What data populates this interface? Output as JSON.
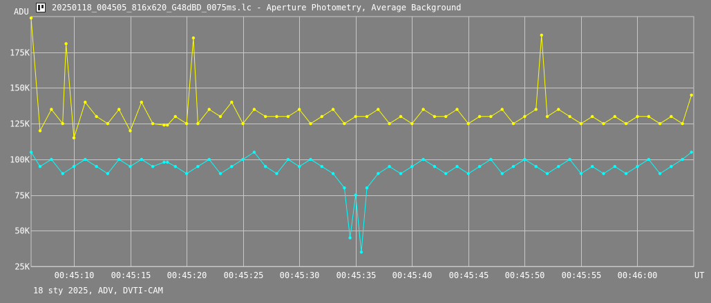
{
  "window": {
    "title": "20250118_004505_816x620_G48dBD_0075ms.lc - Aperture Photometry, Average Background",
    "footer": "18 sty 2025, ADV, DVTI-CAM"
  },
  "chart_data": {
    "type": "line",
    "ylabel": "ADU",
    "xlabel": "UT",
    "ylim": [
      25000,
      200000
    ],
    "xlim": [
      6.2,
      65.0
    ],
    "y_ticks": [
      25000,
      50000,
      75000,
      100000,
      125000,
      150000,
      175000
    ],
    "y_tick_labels": [
      "25K",
      "50K",
      "75K",
      "100K",
      "125K",
      "150K",
      "175K"
    ],
    "x_ticks": [
      10,
      15,
      20,
      25,
      30,
      35,
      40,
      45,
      50,
      55,
      60
    ],
    "x_tick_labels": [
      "00:45:10",
      "00:45:15",
      "00:45:20",
      "00:45:25",
      "00:45:30",
      "00:45:35",
      "00:45:40",
      "00:45:45",
      "00:45:50",
      "00:45:55",
      "00:46:00"
    ],
    "grid": true,
    "series": [
      {
        "color": "#ffff00",
        "x": [
          6.2,
          7.0,
          8.0,
          9.0,
          9.3,
          10.0,
          11.0,
          12.0,
          13.0,
          14.0,
          15.0,
          16.0,
          17.0,
          18.0,
          18.3,
          19.0,
          20.0,
          20.6,
          21.0,
          22.0,
          23.0,
          24.0,
          25.0,
          26.0,
          27.0,
          28.0,
          29.0,
          30.0,
          31.0,
          32.0,
          33.0,
          34.0,
          35.0,
          36.0,
          37.0,
          38.0,
          39.0,
          40.0,
          41.0,
          42.0,
          43.0,
          44.0,
          45.0,
          46.0,
          47.0,
          48.0,
          49.0,
          50.0,
          51.0,
          51.5,
          52.0,
          53.0,
          54.0,
          55.0,
          56.0,
          57.0,
          58.0,
          59.0,
          60.0,
          61.0,
          62.0,
          63.0,
          64.0,
          64.8
        ],
        "y": [
          199000,
          120000,
          135000,
          125000,
          181000,
          115000,
          140000,
          130000,
          125000,
          135000,
          120000,
          140000,
          125000,
          124000,
          124000,
          130000,
          125000,
          185000,
          125000,
          135000,
          130000,
          140000,
          125000,
          135000,
          130000,
          130000,
          130000,
          135000,
          125000,
          130000,
          135000,
          125000,
          130000,
          130000,
          135000,
          125000,
          130000,
          125000,
          135000,
          130000,
          130000,
          135000,
          125000,
          130000,
          130000,
          135000,
          125000,
          130000,
          135000,
          187000,
          130000,
          135000,
          130000,
          125000,
          130000,
          125000,
          130000,
          125000,
          130000,
          130000,
          125000,
          130000,
          125000,
          145000
        ]
      },
      {
        "color": "#00ffff",
        "x": [
          6.2,
          7.0,
          8.0,
          9.0,
          10.0,
          11.0,
          12.0,
          13.0,
          14.0,
          15.0,
          16.0,
          17.0,
          18.0,
          18.3,
          19.0,
          20.0,
          21.0,
          22.0,
          23.0,
          24.0,
          25.0,
          26.0,
          27.0,
          28.0,
          29.0,
          30.0,
          31.0,
          32.0,
          33.0,
          34.0,
          34.5,
          35.0,
          35.5,
          36.0,
          37.0,
          38.0,
          39.0,
          40.0,
          41.0,
          42.0,
          43.0,
          44.0,
          45.0,
          46.0,
          47.0,
          48.0,
          49.0,
          50.0,
          51.0,
          52.0,
          53.0,
          54.0,
          55.0,
          56.0,
          57.0,
          58.0,
          59.0,
          60.0,
          61.0,
          62.0,
          63.0,
          64.0,
          64.8
        ],
        "y": [
          105000,
          95000,
          100000,
          90000,
          95000,
          100000,
          95000,
          90000,
          100000,
          95000,
          100000,
          95000,
          98000,
          98000,
          95000,
          90000,
          95000,
          100000,
          90000,
          95000,
          100000,
          105000,
          95000,
          90000,
          100000,
          95000,
          100000,
          95000,
          90000,
          80000,
          45000,
          75000,
          35000,
          80000,
          90000,
          95000,
          90000,
          95000,
          100000,
          95000,
          90000,
          95000,
          90000,
          95000,
          100000,
          90000,
          95000,
          100000,
          95000,
          90000,
          95000,
          100000,
          90000,
          95000,
          90000,
          95000,
          90000,
          95000,
          100000,
          90000,
          95000,
          100000,
          105000
        ]
      }
    ]
  }
}
